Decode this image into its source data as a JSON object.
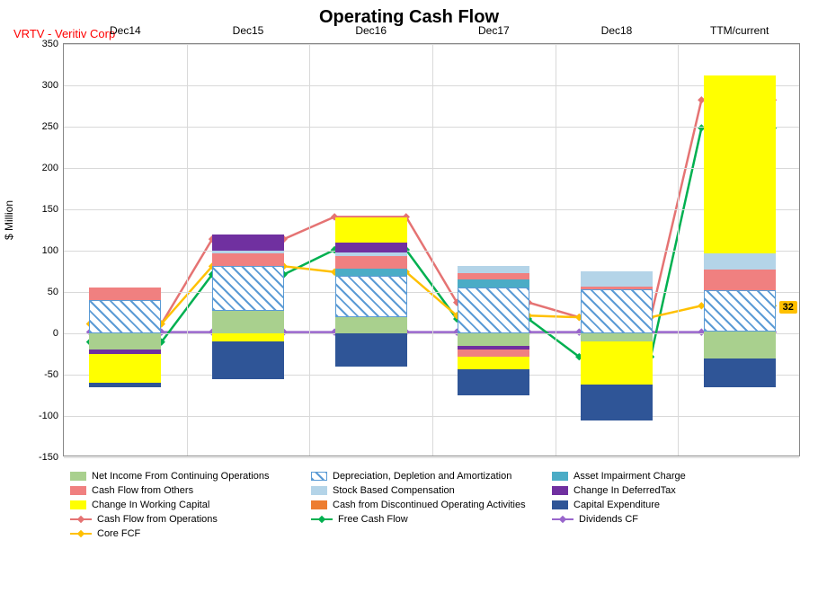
{
  "title": "Operating Cash Flow",
  "ticker": "VRTV - Veritiv Corp",
  "y_axis_label": "$ Million",
  "y": {
    "min": -150,
    "max": 350,
    "step": 50
  },
  "categories": [
    "Dec14",
    "Dec15",
    "Dec16",
    "Dec17",
    "Dec18",
    "TTM/current"
  ],
  "colors": {
    "net_income": "#a9d08e",
    "dda": "hatch",
    "asset_impair": "#4bacc6",
    "cf_others": "#f08080",
    "stock_comp": "#b4d4e8",
    "deferred_tax": "#7030a0",
    "working_cap": "#ffff00",
    "discontinued": "#ed7d31",
    "capex": "#2f5597",
    "cfo_line": "#e57373",
    "fcf_line": "#00b050",
    "div_line": "#9966cc",
    "core_line": "#ffc000",
    "grid": "#d9d9d9"
  },
  "stacks": {
    "Dec14": {
      "pos": [
        [
          "dda",
          40
        ],
        [
          "cf_others",
          15
        ]
      ],
      "neg": [
        [
          "net_income",
          -20
        ],
        [
          "deferred_tax",
          -5
        ],
        [
          "working_cap",
          -35
        ],
        [
          "capex",
          -5
        ]
      ]
    },
    "Dec15": {
      "pos": [
        [
          "net_income",
          27
        ],
        [
          "dda",
          55
        ],
        [
          "cf_others",
          15
        ],
        [
          "stock_comp",
          3
        ],
        [
          "deferred_tax",
          20
        ]
      ],
      "neg": [
        [
          "working_cap",
          -10
        ],
        [
          "capex",
          -45
        ]
      ]
    },
    "Dec16": {
      "pos": [
        [
          "net_income",
          20
        ],
        [
          "dda",
          50
        ],
        [
          "asset_impair",
          8
        ],
        [
          "cf_others",
          15
        ],
        [
          "stock_comp",
          5
        ],
        [
          "deferred_tax",
          12
        ],
        [
          "working_cap",
          30
        ]
      ],
      "neg": [
        [
          "capex",
          -40
        ]
      ]
    },
    "Dec17": {
      "pos": [
        [
          "dda",
          55
        ],
        [
          "asset_impair",
          10
        ],
        [
          "cf_others",
          8
        ],
        [
          "stock_comp",
          8
        ]
      ],
      "neg": [
        [
          "net_income",
          -15
        ],
        [
          "deferred_tax",
          -5
        ],
        [
          "cf_others",
          -8
        ],
        [
          "working_cap",
          -15
        ],
        [
          "capex",
          -32
        ]
      ]
    },
    "Dec18": {
      "pos": [
        [
          "dda",
          53
        ],
        [
          "cf_others",
          4
        ],
        [
          "stock_comp",
          18
        ]
      ],
      "neg": [
        [
          "net_income",
          -10
        ],
        [
          "working_cap",
          -52
        ],
        [
          "capex",
          -43
        ]
      ]
    },
    "TTM/current": {
      "pos": [
        [
          "net_income",
          2
        ],
        [
          "dda",
          50
        ],
        [
          "cf_others",
          25
        ],
        [
          "stock_comp",
          20
        ],
        [
          "working_cap",
          215
        ]
      ],
      "neg": [
        [
          "net_income",
          -30
        ],
        [
          "capex",
          -35
        ]
      ]
    }
  },
  "lines": {
    "cfo": [
      10,
      113,
      140,
      36,
      18,
      282
    ],
    "fcf": [
      -12,
      70,
      100,
      16,
      -30,
      248
    ],
    "div": [
      0,
      0,
      0,
      0,
      0,
      0
    ],
    "core": [
      10,
      80,
      73,
      20,
      18,
      32
    ]
  },
  "callout": {
    "value": "32",
    "series": "core",
    "index": 5
  },
  "legend": [
    {
      "type": "box",
      "color": "#a9d08e",
      "label": "Net Income From Continuing Operations"
    },
    {
      "type": "hatch",
      "color": "hatch",
      "label": "Depreciation, Depletion and Amortization"
    },
    {
      "type": "box",
      "color": "#4bacc6",
      "label": "Asset Impairment Charge"
    },
    {
      "type": "box",
      "color": "#f08080",
      "label": "Cash Flow from Others"
    },
    {
      "type": "box",
      "color": "#b4d4e8",
      "label": "Stock Based Compensation"
    },
    {
      "type": "box",
      "color": "#7030a0",
      "label": "Change In DeferredTax"
    },
    {
      "type": "box",
      "color": "#ffff00",
      "label": "Change In Working Capital"
    },
    {
      "type": "box",
      "color": "#ed7d31",
      "label": "Cash from Discontinued Operating Activities"
    },
    {
      "type": "box",
      "color": "#2f5597",
      "label": "Capital Expenditure"
    },
    {
      "type": "line",
      "color": "#e57373",
      "label": "Cash Flow from Operations"
    },
    {
      "type": "line",
      "color": "#00b050",
      "label": "Free Cash Flow"
    },
    {
      "type": "line",
      "color": "#9966cc",
      "label": "Dividends CF"
    },
    {
      "type": "line",
      "color": "#ffc000",
      "label": "Core FCF"
    }
  ]
}
